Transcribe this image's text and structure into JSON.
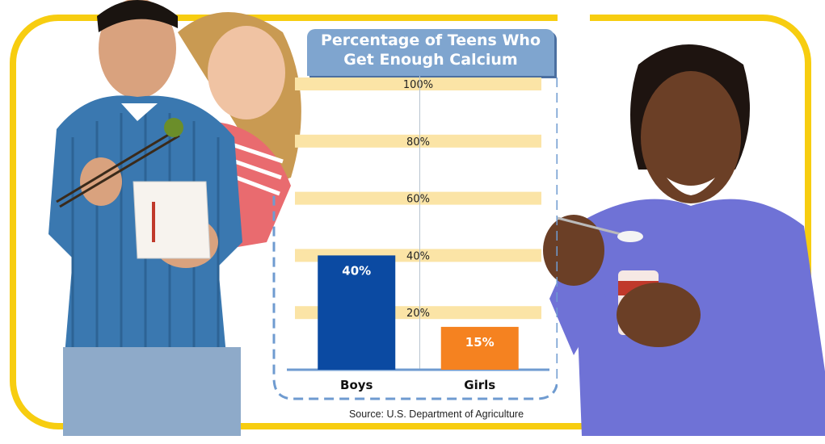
{
  "chart_data": {
    "type": "bar",
    "title": "Percentage of Teens Who\nGet Enough Calcium",
    "categories": [
      "Boys",
      "Girls"
    ],
    "values": [
      40,
      15
    ],
    "value_labels": [
      "40%",
      "15%"
    ],
    "bar_colors": [
      "#0b4aa2",
      "#f58220"
    ],
    "ylim": [
      0,
      100
    ],
    "y_ticks": [
      20,
      40,
      60,
      80,
      100
    ],
    "y_tick_labels": [
      "20%",
      "40%",
      "60%",
      "80%",
      "100%"
    ],
    "grid": "horizontal bands",
    "source": "Source: U.S. Department of Agriculture"
  },
  "colors": {
    "frame": "#f7cd10",
    "band": "#fbe4a6",
    "title_box": "#7fa5cf",
    "dashed_border": "#6f9bd0",
    "axis": "#6f9bd0"
  },
  "photos": [
    "two teens eating takeout with chopsticks",
    "teen girl eating yogurt"
  ]
}
